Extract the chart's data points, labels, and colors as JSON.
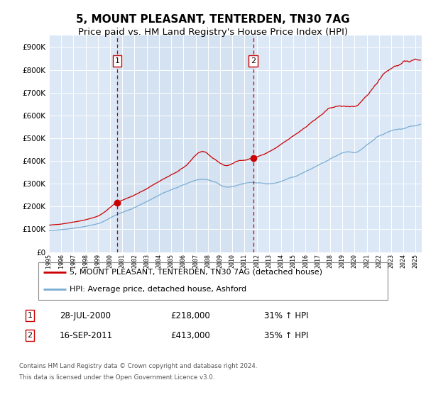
{
  "title": "5, MOUNT PLEASANT, TENTERDEN, TN30 7AG",
  "subtitle": "Price paid vs. HM Land Registry's House Price Index (HPI)",
  "title_fontsize": 11,
  "subtitle_fontsize": 9.5,
  "xlim": [
    1995.0,
    2025.5
  ],
  "ylim": [
    0,
    950000
  ],
  "yticks": [
    0,
    100000,
    200000,
    300000,
    400000,
    500000,
    600000,
    700000,
    800000,
    900000
  ],
  "ytick_labels": [
    "£0",
    "£100K",
    "£200K",
    "£300K",
    "£400K",
    "£500K",
    "£600K",
    "£700K",
    "£800K",
    "£900K"
  ],
  "xtick_years": [
    1995,
    1996,
    1997,
    1998,
    1999,
    2000,
    2001,
    2002,
    2003,
    2004,
    2005,
    2006,
    2007,
    2008,
    2009,
    2010,
    2011,
    2012,
    2013,
    2014,
    2015,
    2016,
    2017,
    2018,
    2019,
    2020,
    2021,
    2022,
    2023,
    2024,
    2025
  ],
  "background_color": "#ffffff",
  "plot_bg_color": "#dce8f5",
  "grid_color": "#ffffff",
  "red_line_color": "#cc0000",
  "blue_line_color": "#7aadd4",
  "marker_color": "#cc0000",
  "dashed_line_color": "#cc0000",
  "sale1_year": 2000.57,
  "sale1_value": 218000,
  "sale1_label": "1",
  "sale1_date": "28-JUL-2000",
  "sale1_price": "£218,000",
  "sale1_hpi": "31% ↑ HPI",
  "sale2_year": 2011.71,
  "sale2_value": 413000,
  "sale2_label": "2",
  "sale2_date": "16-SEP-2011",
  "sale2_price": "£413,000",
  "sale2_hpi": "35% ↑ HPI",
  "legend_red": "5, MOUNT PLEASANT, TENTERDEN, TN30 7AG (detached house)",
  "legend_blue": "HPI: Average price, detached house, Ashford",
  "footnote_line1": "Contains HM Land Registry data © Crown copyright and database right 2024.",
  "footnote_line2": "This data is licensed under the Open Government Licence v3.0."
}
